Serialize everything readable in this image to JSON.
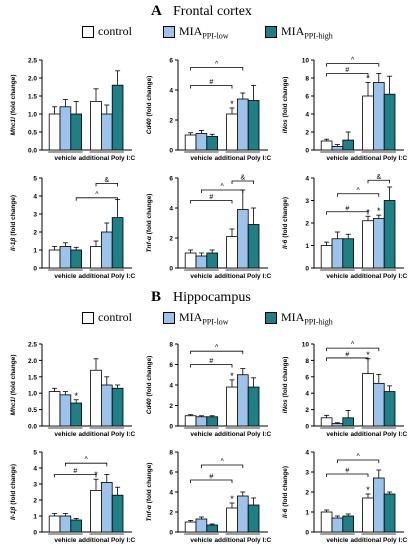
{
  "colors": {
    "control": "#ffffff",
    "mia_low": "#9dc3ea",
    "mia_high": "#1f7f86",
    "stroke": "#000000"
  },
  "sections": [
    {
      "letter": "A",
      "title": "Frontal cortex"
    },
    {
      "letter": "B",
      "title": "Hippocampus"
    }
  ],
  "legend": [
    {
      "key": "control",
      "label": "control",
      "sub": ""
    },
    {
      "key": "mia_low",
      "label": "MIA",
      "sub": "PPI-low"
    },
    {
      "key": "mia_high",
      "label": "MIA",
      "sub": "PPI-high"
    }
  ],
  "chart_data": [
    {
      "type": "bar",
      "section": "Frontal cortex",
      "ylabel_gene": "Mhc1l",
      "ylabel_unit": " (fold change)",
      "ylim": [
        0,
        2.5
      ],
      "yticks": [
        "0.0",
        "0.5",
        "1.0",
        "1.5",
        "2.0",
        "2.5"
      ],
      "categories": [
        "vehicle",
        "additional Poly I:C"
      ],
      "series": [
        {
          "name": "control",
          "values": [
            1.0,
            1.35
          ],
          "err": [
            0.2,
            0.35
          ]
        },
        {
          "name": "MIA PPI-low",
          "values": [
            1.2,
            1.0
          ],
          "err": [
            0.2,
            0.25
          ]
        },
        {
          "name": "MIA PPI-high",
          "values": [
            1.0,
            1.8
          ],
          "err": [
            0.35,
            0.4
          ]
        }
      ],
      "stars": [],
      "brackets": []
    },
    {
      "type": "bar",
      "section": "Frontal cortex",
      "ylabel_gene": "Cd40",
      "ylabel_unit": " (fold change)",
      "ylim": [
        0,
        6
      ],
      "yticks": [
        "0",
        "2",
        "4",
        "6"
      ],
      "categories": [
        "vehicle",
        "additional Poly I:C"
      ],
      "series": [
        {
          "name": "control",
          "values": [
            1.0,
            2.4
          ],
          "err": [
            0.15,
            0.4
          ]
        },
        {
          "name": "MIA PPI-low",
          "values": [
            1.1,
            3.4
          ],
          "err": [
            0.2,
            0.4
          ]
        },
        {
          "name": "MIA PPI-high",
          "values": [
            0.9,
            3.3
          ],
          "err": [
            0.15,
            1.0
          ]
        }
      ],
      "stars": [
        [
          1,
          0
        ]
      ],
      "brackets": [
        {
          "label": "#",
          "from": [
            0,
            0
          ],
          "to": [
            1,
            0
          ],
          "y": 4.3
        },
        {
          "label": "^",
          "from": [
            0,
            0
          ],
          "to": [
            1,
            1
          ],
          "y": 5.5
        }
      ]
    },
    {
      "type": "bar",
      "section": "Frontal cortex",
      "ylabel_gene": "iNos",
      "ylabel_unit": " (fold change)",
      "ylim": [
        0,
        10
      ],
      "yticks": [
        "0",
        "2",
        "4",
        "6",
        "8",
        "10"
      ],
      "categories": [
        "vehicle",
        "additional Poly I:C"
      ],
      "series": [
        {
          "name": "control",
          "values": [
            1.0,
            6.0
          ],
          "err": [
            0.2,
            1.5
          ]
        },
        {
          "name": "MIA PPI-low",
          "values": [
            0.4,
            7.5
          ],
          "err": [
            0.2,
            1.0
          ]
        },
        {
          "name": "MIA PPI-high",
          "values": [
            1.1,
            6.2
          ],
          "err": [
            0.9,
            2.0
          ]
        }
      ],
      "stars": [
        [
          1,
          0
        ]
      ],
      "brackets": [
        {
          "label": "#",
          "from": [
            0,
            0
          ],
          "to": [
            1,
            0
          ],
          "y": 8.5
        },
        {
          "label": "^",
          "from": [
            0,
            0
          ],
          "to": [
            1,
            1
          ],
          "y": 9.6
        }
      ]
    },
    {
      "type": "bar",
      "section": "Frontal cortex",
      "ylabel_gene": "Il-1β",
      "ylabel_unit": " (fold change)",
      "ylim": [
        0,
        5
      ],
      "yticks": [
        "0",
        "1",
        "2",
        "3",
        "4",
        "5"
      ],
      "categories": [
        "vehicle",
        "additional Poly I:C"
      ],
      "series": [
        {
          "name": "control",
          "values": [
            1.0,
            1.2
          ],
          "err": [
            0.2,
            0.3
          ]
        },
        {
          "name": "MIA PPI-low",
          "values": [
            1.2,
            2.0
          ],
          "err": [
            0.2,
            0.5
          ]
        },
        {
          "name": "MIA PPI-high",
          "values": [
            1.0,
            2.8
          ],
          "err": [
            0.15,
            1.0
          ]
        }
      ],
      "stars": [],
      "brackets": [
        {
          "label": "^",
          "from": [
            0,
            2
          ],
          "to": [
            1,
            2
          ],
          "y": 3.9
        },
        {
          "label": "&",
          "from": [
            1,
            0
          ],
          "to": [
            1,
            2
          ],
          "y": 4.7
        }
      ]
    },
    {
      "type": "bar",
      "section": "Frontal cortex",
      "ylabel_gene": "Tnf-α",
      "ylabel_unit": " (fold change)",
      "ylim": [
        0,
        6
      ],
      "yticks": [
        "0",
        "2",
        "4",
        "6"
      ],
      "categories": [
        "vehicle",
        "additional Poly I:C"
      ],
      "series": [
        {
          "name": "control",
          "values": [
            1.0,
            2.1
          ],
          "err": [
            0.2,
            0.5
          ]
        },
        {
          "name": "MIA PPI-low",
          "values": [
            0.8,
            3.9
          ],
          "err": [
            0.2,
            1.3
          ]
        },
        {
          "name": "MIA PPI-high",
          "values": [
            1.0,
            2.9
          ],
          "err": [
            0.2,
            1.1
          ]
        }
      ],
      "stars": [],
      "brackets": [
        {
          "label": "#",
          "from": [
            0,
            0
          ],
          "to": [
            1,
            0
          ],
          "y": 4.5
        },
        {
          "label": "^",
          "from": [
            0,
            1
          ],
          "to": [
            1,
            1
          ],
          "y": 5.2
        },
        {
          "label": "&",
          "from": [
            1,
            0
          ],
          "to": [
            1,
            2
          ],
          "y": 5.8
        }
      ]
    },
    {
      "type": "bar",
      "section": "Frontal cortex",
      "ylabel_gene": "Il-6",
      "ylabel_unit": " (fold change)",
      "ylim": [
        0,
        4
      ],
      "yticks": [
        "0",
        "1",
        "2",
        "3",
        "4"
      ],
      "categories": [
        "vehicle",
        "additional Poly I:C"
      ],
      "series": [
        {
          "name": "control",
          "values": [
            1.0,
            2.1
          ],
          "err": [
            0.15,
            0.2
          ]
        },
        {
          "name": "MIA PPI-low",
          "values": [
            1.3,
            2.2
          ],
          "err": [
            0.3,
            0.15
          ]
        },
        {
          "name": "MIA PPI-high",
          "values": [
            1.3,
            3.0
          ],
          "err": [
            0.2,
            0.6
          ]
        }
      ],
      "stars": [
        [
          1,
          0
        ],
        [
          1,
          1
        ]
      ],
      "brackets": [
        {
          "label": "#",
          "from": [
            0,
            0
          ],
          "to": [
            1,
            0
          ],
          "y": 2.5
        },
        {
          "label": "^",
          "from": [
            0,
            1
          ],
          "to": [
            1,
            1
          ],
          "y": 3.3
        },
        {
          "label": "&",
          "from": [
            1,
            0
          ],
          "to": [
            1,
            2
          ],
          "y": 3.9
        }
      ]
    },
    {
      "type": "bar",
      "section": "Hippocampus",
      "ylabel_gene": "Mhc1l",
      "ylabel_unit": " (fold change)",
      "ylim": [
        0,
        2.5
      ],
      "yticks": [
        "0.0",
        "0.5",
        "1.0",
        "1.5",
        "2.0",
        "2.5"
      ],
      "categories": [
        "vehicle",
        "additional Poly I:C"
      ],
      "series": [
        {
          "name": "control",
          "values": [
            1.05,
            1.7
          ],
          "err": [
            0.1,
            0.35
          ]
        },
        {
          "name": "MIA PPI-low",
          "values": [
            0.95,
            1.25
          ],
          "err": [
            0.1,
            0.25
          ]
        },
        {
          "name": "MIA PPI-high",
          "values": [
            0.7,
            1.15
          ],
          "err": [
            0.1,
            0.1
          ]
        }
      ],
      "stars": [
        [
          0,
          2
        ]
      ],
      "brackets": []
    },
    {
      "type": "bar",
      "section": "Hippocampus",
      "ylabel_gene": "Cd40",
      "ylabel_unit": " (fold change)",
      "ylim": [
        0,
        8
      ],
      "yticks": [
        "0",
        "2",
        "4",
        "6",
        "8"
      ],
      "categories": [
        "vehicle",
        "additional Poly I:C"
      ],
      "series": [
        {
          "name": "control",
          "values": [
            1.0,
            3.8
          ],
          "err": [
            0.1,
            0.7
          ]
        },
        {
          "name": "MIA PPI-low",
          "values": [
            0.9,
            5.0
          ],
          "err": [
            0.1,
            0.6
          ]
        },
        {
          "name": "MIA PPI-high",
          "values": [
            0.9,
            3.8
          ],
          "err": [
            0.1,
            0.9
          ]
        }
      ],
      "stars": [
        [
          1,
          0
        ]
      ],
      "brackets": [
        {
          "label": "#",
          "from": [
            0,
            0
          ],
          "to": [
            1,
            0
          ],
          "y": 6.0
        },
        {
          "label": "^",
          "from": [
            0,
            0
          ],
          "to": [
            1,
            1
          ],
          "y": 7.3
        }
      ]
    },
    {
      "type": "bar",
      "section": "Hippocampus",
      "ylabel_gene": "iNos",
      "ylabel_unit": " (fold change)",
      "ylim": [
        0,
        10
      ],
      "yticks": [
        "0",
        "2",
        "4",
        "6",
        "8",
        "10"
      ],
      "categories": [
        "vehicle",
        "additional Poly I:C"
      ],
      "series": [
        {
          "name": "control",
          "values": [
            1.0,
            6.4
          ],
          "err": [
            0.3,
            1.8
          ]
        },
        {
          "name": "MIA PPI-low",
          "values": [
            0.3,
            5.2
          ],
          "err": [
            0.1,
            1.1
          ]
        },
        {
          "name": "MIA PPI-high",
          "values": [
            1.0,
            4.2
          ],
          "err": [
            0.9,
            0.7
          ]
        }
      ],
      "stars": [
        [
          1,
          0
        ]
      ],
      "brackets": [
        {
          "label": "#",
          "from": [
            0,
            0
          ],
          "to": [
            1,
            0
          ],
          "y": 8.3
        },
        {
          "label": "^",
          "from": [
            0,
            0
          ],
          "to": [
            1,
            1
          ],
          "y": 9.5
        }
      ]
    },
    {
      "type": "bar",
      "section": "Hippocampus",
      "ylabel_gene": "Il-1β",
      "ylabel_unit": " (fold change)",
      "ylim": [
        0,
        5
      ],
      "yticks": [
        "0",
        "1",
        "2",
        "3",
        "4",
        "5"
      ],
      "categories": [
        "vehicle",
        "additional Poly I:C"
      ],
      "series": [
        {
          "name": "control",
          "values": [
            1.0,
            2.6
          ],
          "err": [
            0.15,
            0.7
          ]
        },
        {
          "name": "MIA PPI-low",
          "values": [
            1.0,
            3.1
          ],
          "err": [
            0.15,
            0.5
          ]
        },
        {
          "name": "MIA PPI-high",
          "values": [
            0.75,
            2.3
          ],
          "err": [
            0.1,
            0.5
          ]
        }
      ],
      "stars": [
        [
          1,
          0
        ]
      ],
      "brackets": [
        {
          "label": "#",
          "from": [
            0,
            0
          ],
          "to": [
            1,
            0
          ],
          "y": 3.6
        },
        {
          "label": "^",
          "from": [
            0,
            1
          ],
          "to": [
            1,
            1
          ],
          "y": 4.3
        }
      ]
    },
    {
      "type": "bar",
      "section": "Hippocampus",
      "ylabel_gene": "Tnf-α",
      "ylabel_unit": " (fold change)",
      "ylim": [
        0,
        8
      ],
      "yticks": [
        "0",
        "2",
        "4",
        "6",
        "8"
      ],
      "categories": [
        "vehicle",
        "additional Poly I:C"
      ],
      "series": [
        {
          "name": "control",
          "values": [
            1.0,
            2.4
          ],
          "err": [
            0.15,
            0.5
          ]
        },
        {
          "name": "MIA PPI-low",
          "values": [
            1.3,
            3.6
          ],
          "err": [
            0.2,
            0.4
          ]
        },
        {
          "name": "MIA PPI-high",
          "values": [
            0.7,
            2.7
          ],
          "err": [
            0.1,
            0.7
          ]
        }
      ],
      "stars": [
        [
          1,
          0
        ]
      ],
      "brackets": [
        {
          "label": "#",
          "from": [
            0,
            0
          ],
          "to": [
            1,
            0
          ],
          "y": 5.2
        },
        {
          "label": "^",
          "from": [
            0,
            1
          ],
          "to": [
            1,
            1
          ],
          "y": 6.7
        }
      ]
    },
    {
      "type": "bar",
      "section": "Hippocampus",
      "ylabel_gene": "Il-6",
      "ylabel_unit": " (fold change)",
      "ylim": [
        0,
        4
      ],
      "yticks": [
        "0",
        "1",
        "2",
        "3",
        "4"
      ],
      "categories": [
        "vehicle",
        "additional Poly I:C"
      ],
      "series": [
        {
          "name": "control",
          "values": [
            1.0,
            1.7
          ],
          "err": [
            0.1,
            0.2
          ]
        },
        {
          "name": "MIA PPI-low",
          "values": [
            0.7,
            2.7
          ],
          "err": [
            0.1,
            0.4
          ]
        },
        {
          "name": "MIA PPI-high",
          "values": [
            0.8,
            1.9
          ],
          "err": [
            0.1,
            0.1
          ]
        }
      ],
      "stars": [
        [
          1,
          0
        ]
      ],
      "brackets": [
        {
          "label": "#",
          "from": [
            0,
            0
          ],
          "to": [
            1,
            0
          ],
          "y": 2.9
        },
        {
          "label": "^",
          "from": [
            0,
            1
          ],
          "to": [
            1,
            1
          ],
          "y": 3.6
        }
      ]
    }
  ]
}
